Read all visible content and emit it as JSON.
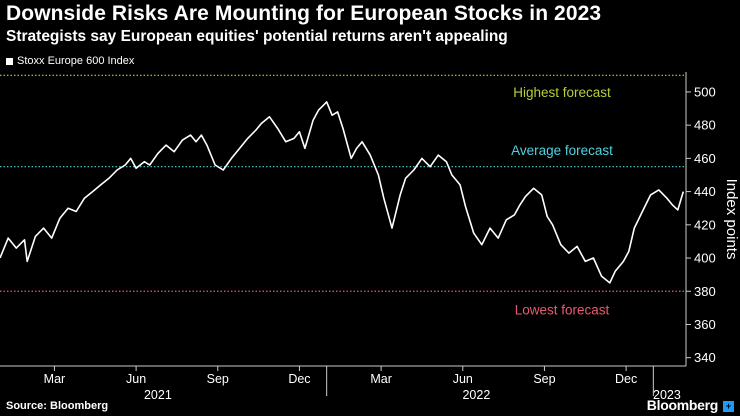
{
  "header": {
    "title": "Downside Risks Are Mounting for European Stocks in 2023",
    "subtitle": "Strategists say European equities' potential returns aren't appealing"
  },
  "legend": {
    "label": "Stoxx Europe 600 Index"
  },
  "footer": {
    "source": "Source: Bloomberg",
    "brand": "Bloomberg",
    "brand_mark": "+"
  },
  "colors": {
    "line": "#ffffff",
    "highest": "#b5cf3a",
    "average": "#4fd1e0",
    "lowest": "#e85a70",
    "axis": "#cccccc"
  },
  "chart_data": {
    "type": "line",
    "title": "Downside Risks Are Mounting for European Stocks in 2023",
    "ylabel": "Index points",
    "ylim": [
      335,
      512
    ],
    "yticks": [
      340,
      360,
      380,
      400,
      420,
      440,
      460,
      480,
      500
    ],
    "x_range_months": [
      0,
      25.2
    ],
    "month_ticks": [
      {
        "label": "Mar",
        "m": 2
      },
      {
        "label": "Jun",
        "m": 5
      },
      {
        "label": "Sep",
        "m": 8
      },
      {
        "label": "Dec",
        "m": 11
      },
      {
        "label": "Mar",
        "m": 14
      },
      {
        "label": "Jun",
        "m": 17
      },
      {
        "label": "Sep",
        "m": 20
      },
      {
        "label": "Dec",
        "m": 23
      }
    ],
    "year_labels": [
      {
        "label": "2021",
        "m": 5.8
      },
      {
        "label": "2022",
        "m": 17.5
      },
      {
        "label": "2023",
        "m": 24.5
      }
    ],
    "year_separators": [
      12,
      24
    ],
    "reference_lines": [
      {
        "label": "Highest forecast",
        "value": 510,
        "color_key": "highest",
        "label_value": 500
      },
      {
        "label": "Average forecast",
        "value": 455,
        "color_key": "average",
        "label_value": 465
      },
      {
        "label": "Lowest forecast",
        "value": 380,
        "color_key": "lowest",
        "label_value": 369
      }
    ],
    "series": [
      {
        "name": "Stoxx Europe 600 Index",
        "x": [
          0.0,
          0.3,
          0.6,
          0.9,
          1.0,
          1.3,
          1.6,
          1.9,
          2.2,
          2.5,
          2.8,
          3.1,
          3.4,
          3.7,
          4.0,
          4.3,
          4.6,
          4.8,
          5.0,
          5.3,
          5.5,
          5.8,
          6.1,
          6.4,
          6.7,
          7.0,
          7.2,
          7.4,
          7.6,
          7.9,
          8.2,
          8.5,
          8.8,
          9.1,
          9.4,
          9.6,
          9.9,
          10.2,
          10.5,
          10.8,
          11.0,
          11.2,
          11.5,
          11.7,
          12.0,
          12.2,
          12.4,
          12.6,
          12.9,
          13.1,
          13.3,
          13.6,
          13.9,
          14.1,
          14.4,
          14.7,
          14.9,
          15.2,
          15.5,
          15.8,
          16.1,
          16.4,
          16.6,
          16.9,
          17.1,
          17.4,
          17.7,
          18.0,
          18.3,
          18.6,
          18.9,
          19.1,
          19.3,
          19.6,
          19.9,
          20.1,
          20.3,
          20.6,
          20.9,
          21.2,
          21.5,
          21.8,
          22.1,
          22.4,
          22.6,
          22.9,
          23.1,
          23.3,
          23.6,
          23.9,
          24.2,
          24.5,
          24.7,
          24.9,
          25.1
        ],
        "values": [
          400,
          412,
          406,
          411,
          398,
          413,
          418,
          412,
          424,
          430,
          428,
          436,
          440,
          444,
          448,
          453,
          456,
          460,
          454,
          458,
          456,
          463,
          468,
          464,
          471,
          474,
          470,
          474,
          468,
          456,
          453,
          460,
          466,
          472,
          477,
          481,
          485,
          478,
          470,
          472,
          476,
          466,
          483,
          489,
          494,
          486,
          488,
          478,
          460,
          466,
          470,
          462,
          450,
          436,
          418,
          438,
          448,
          453,
          460,
          455,
          462,
          458,
          450,
          444,
          431,
          415,
          408,
          418,
          412,
          423,
          426,
          432,
          437,
          442,
          438,
          425,
          420,
          408,
          403,
          407,
          398,
          400,
          389,
          385,
          392,
          398,
          404,
          418,
          428,
          438,
          441,
          436,
          432,
          429,
          440
        ]
      }
    ]
  }
}
